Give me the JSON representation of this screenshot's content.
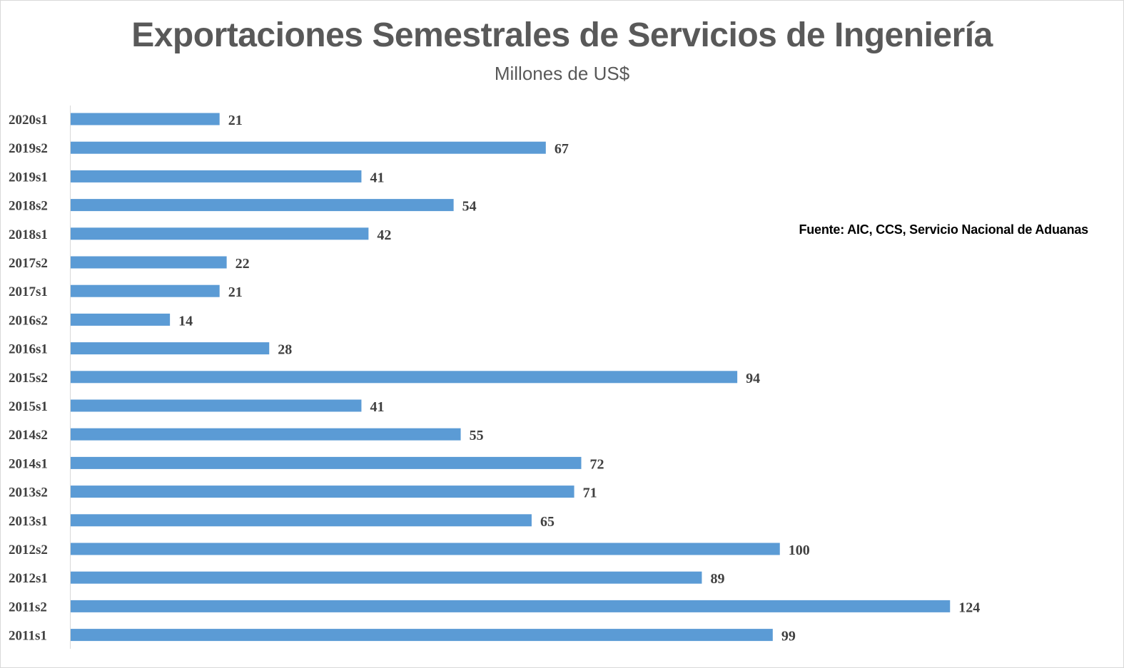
{
  "chart_data": {
    "type": "bar",
    "orientation": "horizontal",
    "title": "Exportaciones Semestrales de Servicios de Ingeniería",
    "subtitle": "Millones de US$",
    "annotation": "Fuente: AIC, CCS, Servicio Nacional de Aduanas",
    "categories": [
      "2020s1",
      "2019s2",
      "2019s1",
      "2018s2",
      "2018s1",
      "2017s2",
      "2017s1",
      "2016s2",
      "2016s1",
      "2015s2",
      "2015s1",
      "2014s2",
      "2014s1",
      "2013s2",
      "2013s1",
      "2012s2",
      "2012s1",
      "2011s2",
      "2011s1"
    ],
    "values": [
      21,
      67,
      41,
      54,
      42,
      22,
      21,
      14,
      28,
      94,
      41,
      55,
      72,
      71,
      65,
      100,
      89,
      124,
      99
    ],
    "xlim": [
      0,
      144
    ],
    "xlabel": "",
    "ylabel": "",
    "grid": false,
    "bar_color": "#5b9bd5"
  }
}
